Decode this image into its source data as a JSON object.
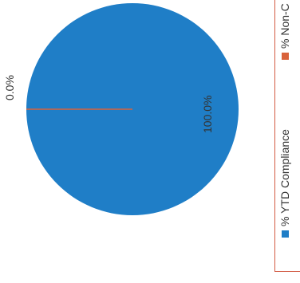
{
  "chart_data": {
    "type": "pie",
    "series": [
      {
        "name": "% YTD Compliance",
        "value": 100.0,
        "label": "100.0%",
        "color": "#1f7ec7"
      },
      {
        "name": "% Non-C",
        "value": 0.0,
        "label": "0.0%",
        "color": "#d9623b"
      }
    ],
    "legend_position": "right (rotated)"
  }
}
